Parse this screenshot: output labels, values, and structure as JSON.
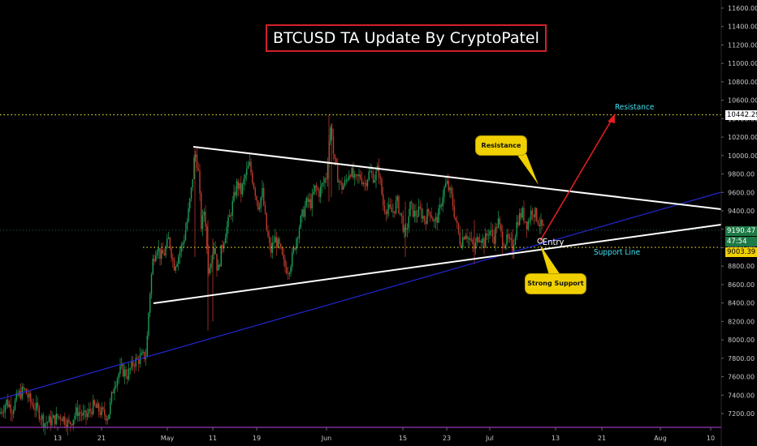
{
  "title": "BTCUSD TA Update By CryptoPatel",
  "colors": {
    "background": "#000000",
    "candle_up": "#1e9e57",
    "candle_down": "#c0392b",
    "trendline": "#ffffff",
    "channel_line": "#2228d0",
    "arrow": "#e01e1e",
    "horizontal_level": "#e8e030",
    "callout": "#f0d000",
    "label_cyan": "#40e0f0",
    "title_border": "#d2202c"
  },
  "annotations": {
    "resistance_label": "Resistance",
    "support_line_label": "Support Line",
    "entry_label": "Entry",
    "callout_resistance": "Resistance",
    "callout_support": "Strong Support"
  },
  "price_badges": {
    "level_top": "10442.29",
    "current": "9190.47",
    "countdown": "47:54",
    "level_bottom": "9003.39"
  },
  "chart_data": {
    "type": "candlestick",
    "title": "BTCUSD TA Update By CryptoPatel",
    "y_axis": {
      "ticks": [
        "11600.00",
        "11400.00",
        "11200.00",
        "11000.00",
        "10800.00",
        "10600.00",
        "10400.00",
        "10200.00",
        "10000.00",
        "9800.00",
        "9600.00",
        "9400.00",
        "9200.00",
        "9000.00",
        "8800.00",
        "8600.00",
        "8400.00",
        "8200.00",
        "8000.00",
        "7800.00",
        "7600.00",
        "7400.00",
        "7200.00"
      ],
      "range": [
        7050,
        11700
      ]
    },
    "x_axis": {
      "ticks": [
        "13",
        "21",
        "May",
        "11",
        "19",
        "Jun",
        "15",
        "23",
        "Jul",
        "13",
        "21",
        "Aug",
        "10"
      ]
    },
    "horizontal_levels": [
      10442.29,
      9003.39
    ],
    "current_price": 9190.47,
    "series": [
      {
        "name": "",
        "path_points": [
          [
            0,
            7200
          ],
          [
            8,
            7330
          ],
          [
            15,
            7250
          ],
          [
            22,
            7390
          ],
          [
            30,
            7460
          ],
          [
            38,
            7320
          ],
          [
            46,
            7240
          ],
          [
            55,
            7100
          ],
          [
            65,
            7130
          ],
          [
            75,
            7180
          ],
          [
            85,
            7080
          ],
          [
            95,
            7230
          ],
          [
            105,
            7160
          ],
          [
            115,
            7280
          ],
          [
            125,
            7210
          ],
          [
            133,
            7170
          ],
          [
            141,
            7540
          ],
          [
            149,
            7680
          ],
          [
            157,
            7620
          ],
          [
            165,
            7760
          ],
          [
            173,
            7800
          ],
          [
            180,
            7840
          ],
          [
            184,
            8450
          ],
          [
            188,
            8850
          ],
          [
            193,
            9030
          ],
          [
            198,
            8900
          ],
          [
            203,
            8950
          ],
          [
            208,
            9100
          ],
          [
            214,
            8800
          ],
          [
            220,
            8920
          ],
          [
            226,
            9080
          ],
          [
            231,
            9320
          ],
          [
            236,
            9650
          ],
          [
            240,
            10050
          ],
          [
            244,
            9850
          ],
          [
            248,
            9200
          ],
          [
            252,
            9450
          ],
          [
            256,
            8760
          ],
          [
            260,
            8900
          ],
          [
            264,
            9050
          ],
          [
            268,
            8720
          ],
          [
            272,
            8950
          ],
          [
            277,
            9150
          ],
          [
            282,
            9300
          ],
          [
            287,
            9500
          ],
          [
            292,
            9700
          ],
          [
            297,
            9600
          ],
          [
            302,
            9780
          ],
          [
            307,
            9900
          ],
          [
            312,
            9700
          ],
          [
            318,
            9450
          ],
          [
            323,
            9600
          ],
          [
            328,
            9200
          ],
          [
            333,
            8950
          ],
          [
            338,
            9100
          ],
          [
            344,
            9000
          ],
          [
            350,
            8800
          ],
          [
            355,
            8760
          ],
          [
            360,
            8900
          ],
          [
            366,
            9150
          ],
          [
            372,
            9350
          ],
          [
            378,
            9500
          ],
          [
            383,
            9480
          ],
          [
            388,
            9650
          ],
          [
            393,
            9600
          ],
          [
            398,
            9700
          ],
          [
            402,
            9780
          ],
          [
            405,
            10150
          ],
          [
            408,
            10350
          ],
          [
            411,
            9950
          ],
          [
            415,
            9800
          ],
          [
            420,
            9650
          ],
          [
            425,
            9700
          ],
          [
            431,
            9850
          ],
          [
            437,
            9720
          ],
          [
            443,
            9780
          ],
          [
            449,
            9700
          ],
          [
            455,
            9820
          ],
          [
            461,
            9760
          ],
          [
            466,
            9860
          ],
          [
            472,
            9450
          ],
          [
            477,
            9420
          ],
          [
            483,
            9380
          ],
          [
            489,
            9500
          ],
          [
            495,
            9300
          ],
          [
            499,
            9100
          ],
          [
            505,
            9450
          ],
          [
            511,
            9350
          ],
          [
            517,
            9400
          ],
          [
            523,
            9300
          ],
          [
            529,
            9420
          ],
          [
            535,
            9260
          ],
          [
            541,
            9380
          ],
          [
            546,
            9620
          ],
          [
            550,
            9700
          ],
          [
            556,
            9540
          ],
          [
            562,
            9250
          ],
          [
            567,
            9050
          ],
          [
            573,
            9180
          ],
          [
            579,
            9060
          ],
          [
            584,
            8990
          ],
          [
            590,
            9150
          ],
          [
            596,
            9050
          ],
          [
            602,
            9200
          ],
          [
            608,
            9100
          ],
          [
            613,
            9300
          ],
          [
            619,
            9060
          ],
          [
            625,
            9080
          ],
          [
            631,
            9000
          ],
          [
            637,
            9300
          ],
          [
            643,
            9380
          ],
          [
            649,
            9250
          ],
          [
            655,
            9420
          ],
          [
            660,
            9350
          ],
          [
            665,
            9250
          ],
          [
            670,
            9190
          ]
        ]
      }
    ]
  }
}
